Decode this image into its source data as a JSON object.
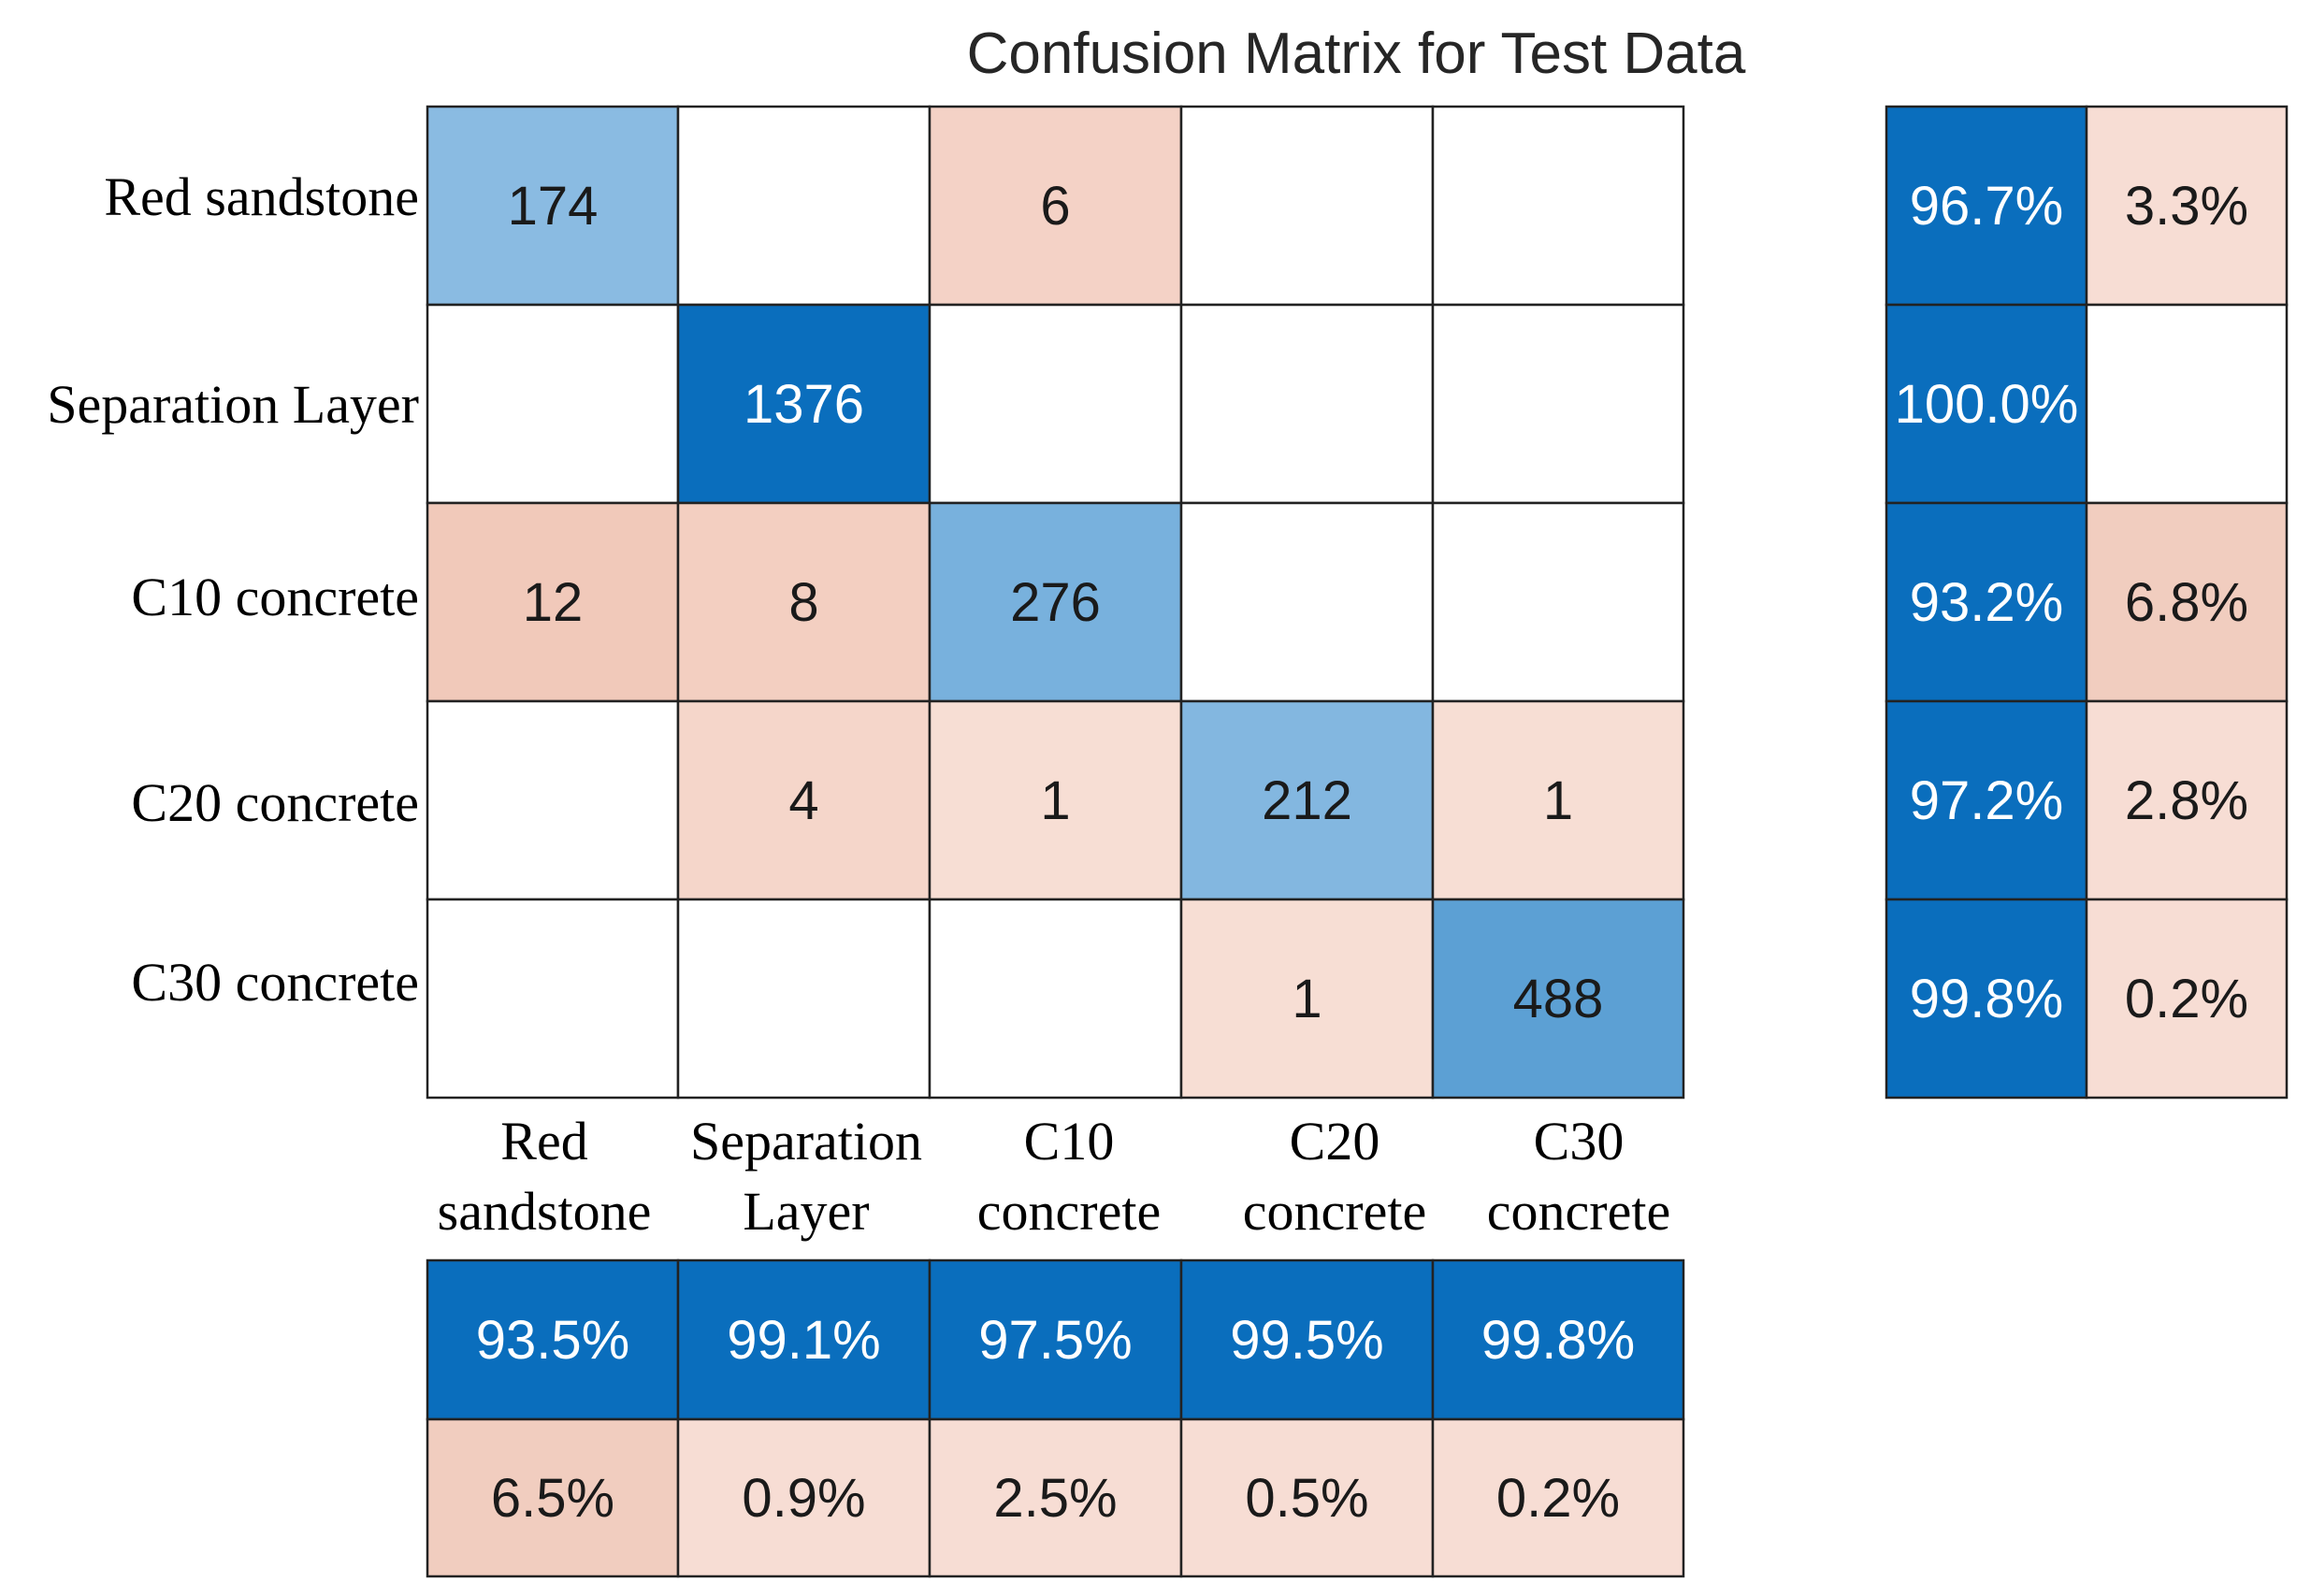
{
  "chart_data": {
    "type": "heatmap",
    "title": "Confusion Matrix for Test Data",
    "row_labels": [
      "Red sandstone",
      "Separation Layer",
      "C10 concrete",
      "C20 concrete",
      "C30 concrete"
    ],
    "column_labels": [
      [
        "Red",
        "sandstone"
      ],
      [
        "Separation",
        "Layer"
      ],
      [
        "C10",
        "concrete"
      ],
      [
        "C20",
        "concrete"
      ],
      [
        "C30",
        "concrete"
      ]
    ],
    "matrix": [
      [
        174,
        null,
        6,
        null,
        null
      ],
      [
        null,
        1376,
        null,
        null,
        null
      ],
      [
        12,
        8,
        276,
        null,
        null
      ],
      [
        null,
        4,
        1,
        212,
        1
      ],
      [
        null,
        null,
        null,
        1,
        488
      ]
    ],
    "row_summary": {
      "correct_pct": [
        96.7,
        100.0,
        93.2,
        97.2,
        99.8
      ],
      "correct_labels": [
        "96.7%",
        "100.0%",
        "93.2%",
        "97.2%",
        "99.8%"
      ],
      "incorrect_pct": [
        3.3,
        0.0,
        6.8,
        2.8,
        0.2
      ],
      "incorrect_labels": [
        "3.3%",
        "",
        "6.8%",
        "2.8%",
        "0.2%"
      ]
    },
    "column_summary": {
      "correct_pct": [
        93.5,
        99.1,
        97.5,
        99.5,
        99.8
      ],
      "correct_labels": [
        "93.5%",
        "99.1%",
        "97.5%",
        "99.5%",
        "99.8%"
      ],
      "incorrect_pct": [
        6.5,
        0.9,
        2.5,
        0.5,
        0.2
      ],
      "incorrect_labels": [
        "6.5%",
        "0.9%",
        "2.5%",
        "0.5%",
        "0.2%"
      ]
    },
    "colors": {
      "correct_strong": "#0a6ebd",
      "correct_light": "#b3d4ec",
      "correct_mid": "#85b9e0",
      "incorrect_light": "#f7ddd4",
      "incorrect_mid": "#f1cdbf",
      "empty": "#ffffff",
      "dark_text": "#1a1a1a",
      "light_text": "#ffffff"
    }
  }
}
